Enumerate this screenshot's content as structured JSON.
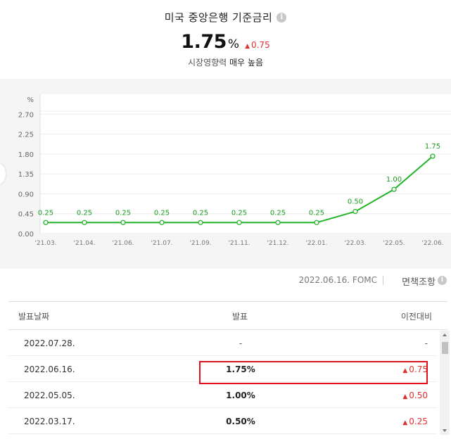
{
  "header": {
    "title": "미국 중앙은행 기준금리",
    "rate_value": "1.75",
    "rate_unit": "%",
    "rate_change": "0.75",
    "impact_label": "시장영향력",
    "impact_value": "매우 높음",
    "up_color": "#e0312f"
  },
  "chart_data": {
    "type": "line",
    "unit_label": "%",
    "categories": [
      "'21.03.",
      "'21.04.",
      "'21.06.",
      "'21.07.",
      "'21.09.",
      "'21.11.",
      "'21.12.",
      "'22.01.",
      "'22.03.",
      "'22.05.",
      "'22.06."
    ],
    "values": [
      0.25,
      0.25,
      0.25,
      0.25,
      0.25,
      0.25,
      0.25,
      0.25,
      0.5,
      1.0,
      1.75
    ],
    "value_labels": [
      "0.25",
      "0.25",
      "0.25",
      "0.25",
      "0.25",
      "0.25",
      "0.25",
      "0.25",
      "0.50",
      "1.00",
      "1.75"
    ],
    "y_ticks": [
      0.0,
      0.45,
      0.9,
      1.35,
      1.8,
      2.25,
      2.7
    ],
    "y_tick_labels": [
      "0.00",
      "0.45",
      "0.90",
      "1.35",
      "1.80",
      "2.25",
      "2.70"
    ],
    "ylim": [
      0,
      3.15
    ],
    "line_color": "#22b428",
    "grid": true,
    "xlabel": "",
    "ylabel": ""
  },
  "subhead": {
    "date_label": "2022.06.16. FOMC",
    "policy_link": "면책조항"
  },
  "table": {
    "headers": {
      "date": "발표날짜",
      "announce": "발표",
      "diff": "이전대비"
    },
    "rows": [
      {
        "date": "2022.07.28.",
        "announce": "-",
        "diff": "-"
      },
      {
        "date": "2022.06.16.",
        "announce": "1.75%",
        "diff": "0.75"
      },
      {
        "date": "2022.05.05.",
        "announce": "1.00%",
        "diff": "0.50"
      },
      {
        "date": "2022.03.17.",
        "announce": "0.50%",
        "diff": "0.25"
      }
    ]
  }
}
